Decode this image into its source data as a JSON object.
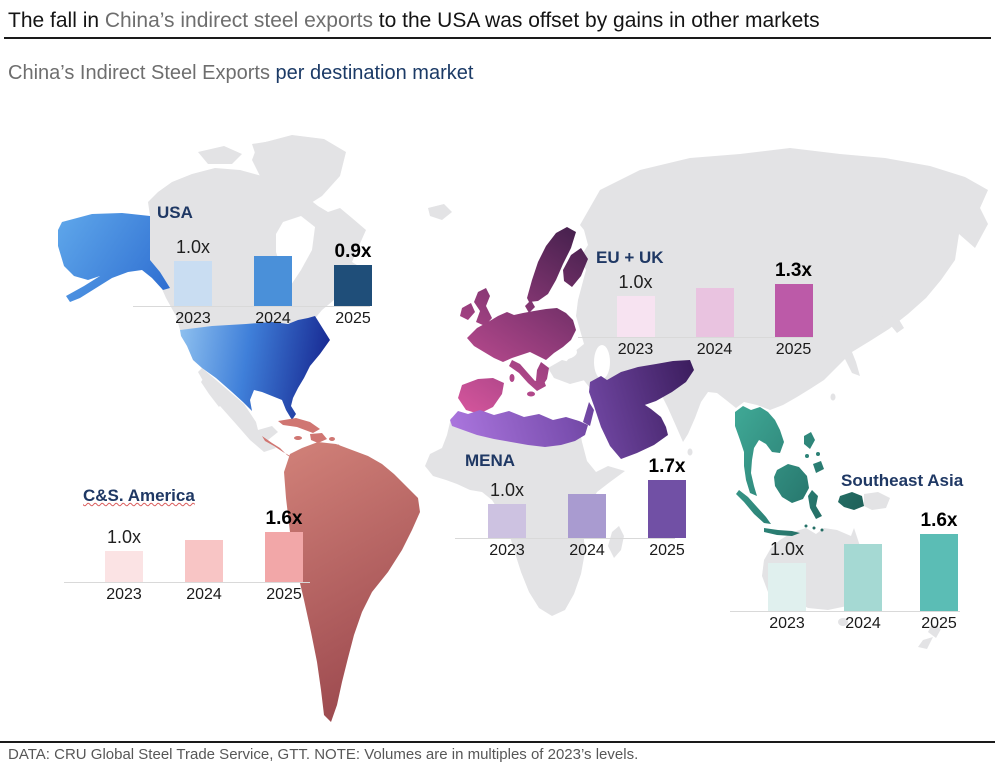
{
  "header": {
    "title_pre": "The fall in ",
    "title_highlight": "China’s indirect steel exports",
    "title_post": " to the USA was offset by gains in other markets",
    "subtitle_muted": "China’s Indirect Steel Exports ",
    "subtitle_accent": "per destination market"
  },
  "footer": {
    "text": "DATA: CRU Global Steel Trade Service, GTT. NOTE: Volumes are in multiples of 2023’s levels."
  },
  "colors": {
    "accent_navy": "#1f3864",
    "muted_gray": "#6e6e6e",
    "map_base_gray": "#e3e3e5",
    "baseline_gray": "#d9d9d9"
  },
  "map": {
    "regions": [
      {
        "name": "USA",
        "gradient": [
          "#8ec0ef",
          "#16258f"
        ]
      },
      {
        "name": "C&S. America",
        "gradient": [
          "#d08078",
          "#9a474d"
        ]
      },
      {
        "name": "EU + UK",
        "gradient": [
          "#d4559c",
          "#45204d"
        ]
      },
      {
        "name": "MENA",
        "gradient": [
          "#ab76de",
          "#3a1c5c"
        ]
      },
      {
        "name": "Southeast Asia",
        "gradient": [
          "#3ea593",
          "#1d5c55"
        ]
      }
    ]
  },
  "chart_data": [
    {
      "type": "bar",
      "region": "USA",
      "categories": [
        "2023",
        "2024",
        "2025"
      ],
      "values": [
        1.0,
        1.1,
        0.9
      ],
      "value_labels": [
        "1.0x",
        "",
        "0.9x"
      ],
      "bar_colors": [
        "#c9ddf2",
        "#4a90d9",
        "#1f4e79"
      ],
      "ylabel": "multiple of 2023 volume"
    },
    {
      "type": "bar",
      "region": "C&S. America",
      "categories": [
        "2023",
        "2024",
        "2025"
      ],
      "values": [
        1.0,
        1.35,
        1.6
      ],
      "value_labels": [
        "1.0x",
        "",
        "1.6x"
      ],
      "bar_colors": [
        "#fbe3e4",
        "#f8c5c5",
        "#f2a7a8"
      ],
      "ylabel": "multiple of 2023 volume"
    },
    {
      "type": "bar",
      "region": "EU + UK",
      "categories": [
        "2023",
        "2024",
        "2025"
      ],
      "values": [
        1.0,
        1.2,
        1.3
      ],
      "value_labels": [
        "1.0x",
        "",
        "1.3x"
      ],
      "bar_colors": [
        "#f7e3f1",
        "#e9c3e0",
        "#bc5aa8"
      ],
      "ylabel": "multiple of 2023 volume"
    },
    {
      "type": "bar",
      "region": "MENA",
      "categories": [
        "2023",
        "2024",
        "2025"
      ],
      "values": [
        1.0,
        1.3,
        1.7
      ],
      "value_labels": [
        "1.0x",
        "",
        "1.7x"
      ],
      "bar_colors": [
        "#cdc2e1",
        "#a99bd0",
        "#7150a5"
      ],
      "ylabel": "multiple of 2023 volume"
    },
    {
      "type": "bar",
      "region": "Southeast Asia",
      "categories": [
        "2023",
        "2024",
        "2025"
      ],
      "values": [
        1.0,
        1.4,
        1.6
      ],
      "value_labels": [
        "1.0x",
        "",
        "1.6x"
      ],
      "bar_colors": [
        "#e0f0ee",
        "#a5d9d3",
        "#5bbdb5"
      ],
      "ylabel": "multiple of 2023 volume"
    }
  ]
}
